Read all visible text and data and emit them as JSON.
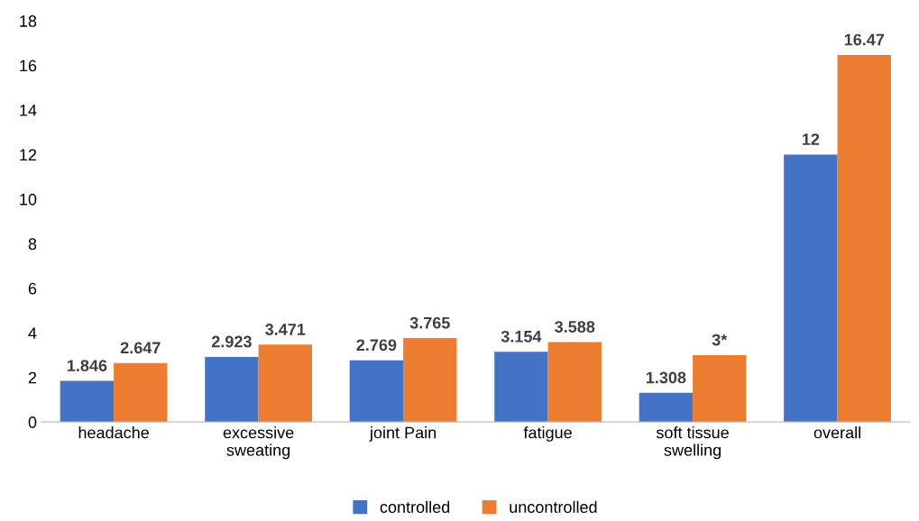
{
  "chart_data": {
    "type": "bar",
    "categories": [
      "headache",
      "excessive\nsweating",
      "joint Pain",
      "fatigue",
      "soft tissue\nswelling",
      "overall"
    ],
    "series": [
      {
        "name": "controlled",
        "color": "#4472c4",
        "values": [
          1.846,
          2.923,
          2.769,
          3.154,
          1.308,
          12
        ],
        "value_labels": [
          "1.846",
          "2.923",
          "2.769",
          "3.154",
          "1.308",
          "12"
        ]
      },
      {
        "name": "uncontrolled",
        "color": "#ed7d31",
        "values": [
          2.647,
          3.471,
          3.765,
          3.588,
          3,
          16.47
        ],
        "value_labels": [
          "2.647",
          "3.471",
          "3.765",
          "3.588",
          "3*",
          "16.47"
        ]
      }
    ],
    "ylim": [
      0,
      18
    ],
    "yticks": [
      0,
      2,
      4,
      6,
      8,
      10,
      12,
      14,
      16,
      18
    ],
    "grid": false,
    "legend": "bottom"
  }
}
